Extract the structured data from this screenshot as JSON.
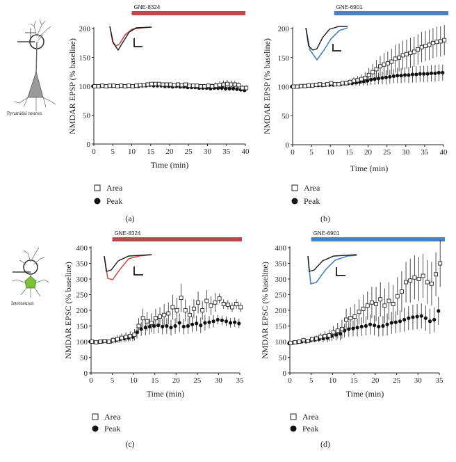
{
  "colors": {
    "red": "#b84a4a",
    "blue": "#4a80c0",
    "black": "#1a1a1a",
    "cell_gray": "#9a9a9a",
    "cell_green": "#7cbf3a"
  },
  "cells": [
    {
      "label": "Pyramidal neuron",
      "icon": "pyramidal-neuron-icon"
    },
    {
      "label": "Interneuron",
      "icon": "interneuron-icon"
    }
  ],
  "chart_data": [
    {
      "type": "scatter",
      "panel": "(a)",
      "drug": "GNE-8324",
      "drug_start": 10,
      "drug_color": "red",
      "xlabel": "Time (min)",
      "ylabel": "NMDAR EPSP (% baseline)",
      "xlim": [
        0,
        40
      ],
      "ylim": [
        0,
        200
      ],
      "xticks": [
        0,
        5,
        10,
        15,
        20,
        25,
        30,
        35,
        40
      ],
      "yticks": [
        0,
        50,
        100,
        150,
        200
      ],
      "legend": {
        "area": "Area",
        "peak": "Peak"
      },
      "series": [
        {
          "name": "Area",
          "marker": "open-square",
          "x": [
            0,
            1,
            2,
            3,
            4,
            5,
            6,
            7,
            8,
            9,
            10,
            11,
            12,
            13,
            14,
            15,
            16,
            17,
            18,
            19,
            20,
            21,
            22,
            23,
            24,
            25,
            26,
            27,
            28,
            29,
            30,
            31,
            32,
            33,
            34,
            35,
            36,
            37,
            38,
            39,
            40
          ],
          "y": [
            100,
            100,
            101,
            100,
            101,
            101,
            100,
            101,
            100,
            101,
            100,
            101,
            102,
            102,
            103,
            104,
            104,
            104,
            103,
            103,
            103,
            102,
            103,
            102,
            103,
            101,
            101,
            101,
            100,
            100,
            101,
            100,
            101,
            102,
            103,
            104,
            103,
            103,
            102,
            97,
            97
          ],
          "err": [
            1,
            1,
            1,
            1,
            1,
            1,
            1,
            1,
            1,
            1,
            1,
            2,
            2,
            2,
            2,
            3,
            3,
            3,
            3,
            3,
            3,
            3,
            3,
            3,
            3,
            3,
            3,
            3,
            4,
            4,
            4,
            5,
            6,
            7,
            7,
            7,
            7,
            6,
            5,
            5,
            5
          ]
        },
        {
          "name": "Peak",
          "marker": "filled-circle",
          "x": [
            0,
            1,
            2,
            3,
            4,
            5,
            6,
            7,
            8,
            9,
            10,
            11,
            12,
            13,
            14,
            15,
            16,
            17,
            18,
            19,
            20,
            21,
            22,
            23,
            24,
            25,
            26,
            27,
            28,
            29,
            30,
            31,
            32,
            33,
            34,
            35,
            36,
            37,
            38,
            39,
            40
          ],
          "y": [
            100,
            100,
            100,
            100,
            100,
            100,
            100,
            100,
            100,
            100,
            100,
            100,
            100,
            101,
            101,
            102,
            101,
            101,
            101,
            100,
            100,
            99,
            100,
            99,
            99,
            98,
            98,
            98,
            97,
            97,
            97,
            96,
            97,
            97,
            97,
            96,
            96,
            96,
            95,
            94,
            93
          ],
          "err": [
            1,
            1,
            1,
            1,
            1,
            1,
            1,
            1,
            1,
            1,
            1,
            1,
            2,
            2,
            2,
            2,
            2,
            2,
            2,
            2,
            2,
            2,
            2,
            2,
            2,
            2,
            2,
            2,
            3,
            3,
            3,
            3,
            3,
            4,
            4,
            4,
            4,
            4,
            3,
            3,
            3
          ]
        }
      ]
    },
    {
      "type": "scatter",
      "panel": "(b)",
      "drug": "GNE-6901",
      "drug_start": 11,
      "drug_color": "blue",
      "xlabel": "Time (min)",
      "ylabel": "NMDAR EPSP (% baseline)",
      "xlim": [
        0,
        40
      ],
      "ylim": [
        0,
        200
      ],
      "xticks": [
        0,
        5,
        10,
        15,
        20,
        25,
        30,
        35,
        40
      ],
      "yticks": [
        0,
        50,
        100,
        150,
        200
      ],
      "legend": {
        "area": "Area",
        "peak": "Peak"
      },
      "series": [
        {
          "name": "Area",
          "marker": "open-square",
          "x": [
            0,
            1,
            2,
            3,
            4,
            5,
            6,
            7,
            8,
            9,
            10,
            11,
            12,
            13,
            14,
            15,
            16,
            17,
            18,
            19,
            20,
            21,
            22,
            23,
            24,
            25,
            26,
            27,
            28,
            29,
            30,
            31,
            32,
            33,
            34,
            35,
            36,
            37,
            38,
            39,
            40
          ],
          "y": [
            100,
            100,
            101,
            101,
            102,
            102,
            103,
            104,
            103,
            104,
            106,
            104,
            104,
            106,
            106,
            108,
            110,
            111,
            113,
            115,
            120,
            125,
            130,
            135,
            138,
            140,
            143,
            148,
            150,
            154,
            156,
            158,
            160,
            164,
            168,
            170,
            172,
            175,
            177,
            178,
            180
          ],
          "err": [
            1,
            1,
            1,
            1,
            1,
            1,
            1,
            2,
            2,
            2,
            2,
            2,
            2,
            3,
            4,
            5,
            6,
            7,
            8,
            10,
            12,
            14,
            16,
            18,
            20,
            20,
            22,
            24,
            24,
            25,
            25,
            26,
            26,
            26,
            26,
            26,
            26,
            26,
            26,
            26,
            26
          ]
        },
        {
          "name": "Peak",
          "marker": "filled-circle",
          "x": [
            0,
            1,
            2,
            3,
            4,
            5,
            6,
            7,
            8,
            9,
            10,
            11,
            12,
            13,
            14,
            15,
            16,
            17,
            18,
            19,
            20,
            21,
            22,
            23,
            24,
            25,
            26,
            27,
            28,
            29,
            30,
            31,
            32,
            33,
            34,
            35,
            36,
            37,
            38,
            39,
            40
          ],
          "y": [
            100,
            100,
            100,
            101,
            101,
            101,
            102,
            102,
            102,
            103,
            103,
            103,
            104,
            104,
            105,
            106,
            106,
            107,
            108,
            109,
            110,
            112,
            113,
            114,
            115,
            116,
            117,
            118,
            119,
            119,
            120,
            120,
            121,
            121,
            122,
            122,
            122,
            123,
            123,
            124,
            124
          ],
          "err": [
            1,
            1,
            1,
            1,
            1,
            1,
            1,
            1,
            2,
            2,
            2,
            2,
            2,
            3,
            3,
            4,
            4,
            5,
            6,
            7,
            8,
            9,
            10,
            10,
            11,
            12,
            12,
            12,
            13,
            13,
            13,
            14,
            14,
            14,
            14,
            14,
            14,
            14,
            14,
            14,
            14
          ]
        }
      ]
    },
    {
      "type": "scatter",
      "panel": "(c)",
      "drug": "GNE-8324",
      "drug_start": 5,
      "drug_color": "red",
      "xlabel": "Time (min)",
      "ylabel": "NMDAR EPSC (% baseline)",
      "xlim": [
        0,
        35
      ],
      "ylim": [
        0,
        400
      ],
      "xticks": [
        0,
        5,
        10,
        15,
        20,
        25,
        30,
        35
      ],
      "yticks": [
        0,
        50,
        100,
        150,
        200,
        250,
        300,
        350,
        400
      ],
      "legend": {
        "area": "Area",
        "peak": "Peak"
      },
      "series": [
        {
          "name": "Area",
          "marker": "open-square",
          "x": [
            0,
            1,
            2,
            3,
            4,
            5,
            6,
            7,
            8,
            9,
            10,
            11,
            12,
            13,
            14,
            15,
            16,
            17,
            18,
            19,
            20,
            21,
            22,
            23,
            24,
            25,
            26,
            27,
            28,
            29,
            30,
            31,
            32,
            33,
            34,
            35
          ],
          "y": [
            100,
            98,
            100,
            102,
            100,
            105,
            108,
            112,
            115,
            118,
            122,
            150,
            175,
            165,
            160,
            175,
            180,
            185,
            190,
            210,
            200,
            240,
            200,
            185,
            205,
            225,
            200,
            230,
            215,
            225,
            238,
            220,
            218,
            210,
            220,
            210
          ],
          "err": [
            3,
            3,
            4,
            4,
            5,
            10,
            12,
            14,
            15,
            15,
            18,
            25,
            30,
            30,
            30,
            30,
            30,
            35,
            35,
            40,
            40,
            45,
            35,
            30,
            30,
            35,
            30,
            35,
            30,
            30,
            15,
            15,
            15,
            15,
            15,
            15
          ]
        },
        {
          "name": "Peak",
          "marker": "filled-circle",
          "x": [
            0,
            1,
            2,
            3,
            4,
            5,
            6,
            7,
            8,
            9,
            10,
            11,
            12,
            13,
            14,
            15,
            16,
            17,
            18,
            19,
            20,
            21,
            22,
            23,
            24,
            25,
            26,
            27,
            28,
            29,
            30,
            31,
            32,
            33,
            34,
            35
          ],
          "y": [
            100,
            98,
            99,
            100,
            100,
            102,
            105,
            108,
            110,
            112,
            115,
            130,
            140,
            145,
            148,
            150,
            152,
            148,
            150,
            145,
            150,
            160,
            148,
            150,
            155,
            158,
            152,
            160,
            162,
            165,
            170,
            168,
            165,
            160,
            162,
            158
          ],
          "err": [
            3,
            3,
            3,
            4,
            4,
            8,
            10,
            12,
            12,
            12,
            14,
            20,
            22,
            25,
            25,
            25,
            25,
            25,
            25,
            25,
            25,
            30,
            25,
            25,
            25,
            25,
            25,
            25,
            20,
            20,
            15,
            15,
            15,
            15,
            15,
            15
          ]
        }
      ]
    },
    {
      "type": "scatter",
      "panel": "(d)",
      "drug": "GNE-6901",
      "drug_start": 5,
      "drug_color": "blue",
      "xlabel": "Time (min)",
      "ylabel": "NMDAR EPSC (% baseline)",
      "xlim": [
        0,
        35
      ],
      "ylim": [
        0,
        400
      ],
      "xticks": [
        0,
        5,
        10,
        15,
        20,
        25,
        30,
        35
      ],
      "yticks": [
        0,
        50,
        100,
        150,
        200,
        250,
        300,
        350,
        400
      ],
      "legend": {
        "area": "Area",
        "peak": "Peak"
      },
      "series": [
        {
          "name": "Area",
          "marker": "open-square",
          "x": [
            0,
            1,
            2,
            3,
            4,
            5,
            6,
            7,
            8,
            9,
            10,
            11,
            12,
            13,
            14,
            15,
            16,
            17,
            18,
            19,
            20,
            21,
            22,
            23,
            24,
            25,
            26,
            27,
            28,
            29,
            30,
            31,
            32,
            33,
            34,
            35
          ],
          "y": [
            96,
            98,
            100,
            105,
            102,
            108,
            110,
            115,
            118,
            120,
            130,
            135,
            140,
            170,
            175,
            180,
            195,
            205,
            215,
            225,
            220,
            235,
            215,
            230,
            220,
            245,
            260,
            290,
            295,
            305,
            300,
            310,
            290,
            285,
            315,
            350
          ],
          "err": [
            3,
            3,
            4,
            5,
            6,
            8,
            10,
            12,
            15,
            18,
            20,
            25,
            30,
            35,
            35,
            40,
            40,
            45,
            45,
            50,
            55,
            55,
            55,
            60,
            60,
            60,
            65,
            65,
            70,
            70,
            70,
            70,
            70,
            70,
            70,
            75
          ]
        },
        {
          "name": "Peak",
          "marker": "filled-circle",
          "x": [
            0,
            1,
            2,
            3,
            4,
            5,
            6,
            7,
            8,
            9,
            10,
            11,
            12,
            13,
            14,
            15,
            16,
            17,
            18,
            19,
            20,
            21,
            22,
            23,
            24,
            25,
            26,
            27,
            28,
            29,
            30,
            31,
            32,
            33,
            34,
            35
          ],
          "y": [
            94,
            96,
            98,
            100,
            100,
            104,
            106,
            108,
            110,
            112,
            118,
            122,
            125,
            135,
            140,
            142,
            145,
            148,
            150,
            155,
            152,
            148,
            150,
            155,
            160,
            162,
            165,
            170,
            175,
            178,
            180,
            182,
            175,
            165,
            170,
            198
          ],
          "err": [
            3,
            3,
            3,
            4,
            5,
            6,
            8,
            10,
            12,
            14,
            16,
            18,
            20,
            22,
            25,
            25,
            28,
            30,
            30,
            32,
            32,
            32,
            32,
            35,
            35,
            35,
            35,
            38,
            38,
            40,
            40,
            40,
            40,
            40,
            40,
            45
          ]
        }
      ]
    }
  ]
}
